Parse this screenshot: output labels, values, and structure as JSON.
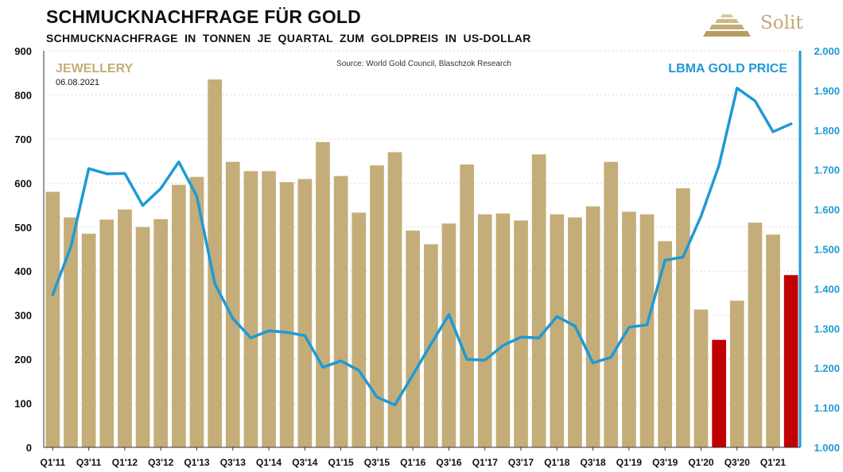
{
  "header": {
    "title": "SCHMUCKNACHFRAGE FÜR GOLD",
    "subtitle": "SCHMUCKNACHFRAGE IN TONNEN JE QUARTAL ZUM GOLDPREIS IN US-DOLLAR",
    "logo_text": "Solit"
  },
  "colors": {
    "bar": "#c4ad78",
    "bar_highlight": "#c00000",
    "line": "#1e9ad6",
    "jewellery_label": "#c4ad78",
    "gold_label": "#1e9ad6"
  },
  "chart_data": {
    "type": "bar",
    "source": "Source: World Gold Council, Blaschzok Research",
    "date": "06.08.2021",
    "jewellery_label": "JEWELLERY",
    "gold_label": "LBMA GOLD PRICE",
    "categories": [
      "Q1'11",
      "Q2'11",
      "Q3'11",
      "Q4'11",
      "Q1'12",
      "Q2'12",
      "Q3'12",
      "Q4'12",
      "Q1'13",
      "Q2'13",
      "Q3'13",
      "Q4'13",
      "Q1'14",
      "Q2'14",
      "Q3'14",
      "Q4'14",
      "Q1'15",
      "Q2'15",
      "Q3'15",
      "Q4'15",
      "Q1'16",
      "Q2'16",
      "Q3'16",
      "Q4'16",
      "Q1'17",
      "Q2'17",
      "Q3'17",
      "Q4'17",
      "Q1'18",
      "Q2'18",
      "Q3'18",
      "Q4'18",
      "Q1'19",
      "Q2'19",
      "Q3'19",
      "Q4'19",
      "Q1'20",
      "Q2'20",
      "Q3'20",
      "Q4'20",
      "Q1'21",
      "Q2'21"
    ],
    "x_tick_labels": [
      "Q1'11",
      "Q3'11",
      "Q1'12",
      "Q3'12",
      "Q1'13",
      "Q3'13",
      "Q1'14",
      "Q3'14",
      "Q1'15",
      "Q3'15",
      "Q1'16",
      "Q3'16",
      "Q1'17",
      "Q3'17",
      "Q1'18",
      "Q3'18",
      "Q1'19",
      "Q3'19",
      "Q1'20",
      "Q3'20",
      "Q1'21"
    ],
    "series": [
      {
        "name": "Jewellery",
        "axis": "left",
        "kind": "bar",
        "values": [
          580,
          522,
          485,
          517,
          540,
          500,
          518,
          596,
          614,
          835,
          648,
          627,
          627,
          602,
          609,
          693,
          616,
          533,
          640,
          670,
          492,
          461,
          508,
          642,
          529,
          531,
          515,
          665,
          529,
          522,
          547,
          648,
          535,
          529,
          468,
          588,
          313,
          244,
          333,
          510,
          483,
          391
        ],
        "highlight": [
          false,
          false,
          false,
          false,
          false,
          false,
          false,
          false,
          false,
          false,
          false,
          false,
          false,
          false,
          false,
          false,
          false,
          false,
          false,
          false,
          false,
          false,
          false,
          false,
          false,
          false,
          false,
          false,
          false,
          false,
          false,
          false,
          false,
          false,
          false,
          false,
          false,
          true,
          false,
          false,
          false,
          true
        ]
      },
      {
        "name": "LBMA Gold Price",
        "axis": "right",
        "kind": "line",
        "values": [
          1385,
          1505,
          1703,
          1690,
          1691,
          1610,
          1653,
          1720,
          1633,
          1413,
          1325,
          1276,
          1294,
          1290,
          1282,
          1202,
          1218,
          1194,
          1127,
          1107,
          1183,
          1260,
          1335,
          1222,
          1220,
          1257,
          1278,
          1276,
          1330,
          1306,
          1213,
          1227,
          1303,
          1309,
          1472,
          1480,
          1583,
          1711,
          1906,
          1874,
          1796,
          1816
        ]
      }
    ],
    "y_left": {
      "min": 0,
      "max": 900,
      "ticks": [
        "0",
        "100",
        "200",
        "300",
        "400",
        "500",
        "600",
        "700",
        "800",
        "900"
      ]
    },
    "y_right": {
      "min": 1000,
      "max": 2000,
      "ticks": [
        "1.000",
        "1.100",
        "1.200",
        "1.300",
        "1.400",
        "1.500",
        "1.600",
        "1.700",
        "1.800",
        "1.900",
        "2.000"
      ]
    },
    "grid": true
  }
}
